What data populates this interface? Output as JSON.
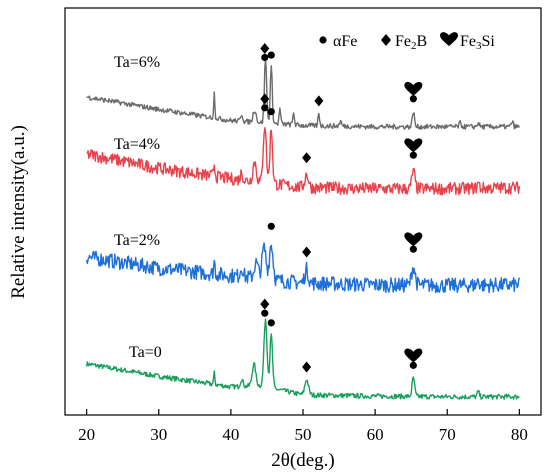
{
  "chart_data": {
    "type": "line",
    "xlabel": "2θ(deg.)",
    "ylabel": "Relative intensity(a.u.)",
    "xlim": [
      17,
      83
    ],
    "xticks": [
      20,
      30,
      40,
      50,
      60,
      70,
      80
    ],
    "y_ticks_shown": false,
    "grid": false,
    "legend": {
      "position": "top-right",
      "entries": [
        {
          "symbol": "circle",
          "label": "αFe"
        },
        {
          "symbol": "diamond",
          "label": "Fe2B"
        },
        {
          "symbol": "heart",
          "label": "Fe3Si"
        }
      ]
    },
    "peak_markers": {
      "circle": "αFe",
      "diamond": "Fe2B",
      "heart": "Fe3Si"
    },
    "series": [
      {
        "name": "Ta=6%",
        "color": "#1a9e5c",
        "offset": 3,
        "noise": 0.04,
        "baseline": [
          [
            20,
            0.55
          ],
          [
            30,
            0.35
          ],
          [
            40,
            0.18
          ],
          [
            44,
            0.2
          ],
          [
            50,
            0.05
          ],
          [
            60,
            0.03
          ],
          [
            70,
            0.02
          ],
          [
            80,
            0.02
          ]
        ],
        "peaks": [
          [
            37.7,
            0.18,
            0.12
          ],
          [
            41.5,
            0.12,
            0.25
          ],
          [
            43.2,
            0.35,
            0.35
          ],
          [
            44.8,
            1.1,
            0.3
          ],
          [
            45.6,
            0.85,
            0.25
          ],
          [
            50.5,
            0.25,
            0.35
          ],
          [
            65.3,
            0.3,
            0.25
          ],
          [
            74.3,
            0.08,
            0.2
          ]
        ],
        "markers": [
          {
            "x": 44.7,
            "symbols": [
              "diamond",
              "circle"
            ]
          },
          {
            "x": 45.6,
            "symbols": [
              "circle"
            ]
          },
          {
            "x": 50.5,
            "symbols": [
              "diamond"
            ]
          },
          {
            "x": 65.3,
            "symbols": [
              "heart",
              "circle"
            ]
          }
        ]
      },
      {
        "name": "Ta=4%",
        "color": "#1f6fd8",
        "offset": 2,
        "noise": 0.12,
        "baseline": [
          [
            20,
            0.5
          ],
          [
            30,
            0.32
          ],
          [
            40,
            0.2
          ],
          [
            50,
            0.08
          ],
          [
            60,
            0.05
          ],
          [
            70,
            0.04
          ],
          [
            80,
            0.05
          ]
        ],
        "peaks": [
          [
            37.7,
            0.2,
            0.15
          ],
          [
            41.5,
            0.15,
            0.3
          ],
          [
            43.5,
            0.25,
            0.4
          ],
          [
            44.6,
            0.5,
            0.4
          ],
          [
            45.6,
            0.58,
            0.35
          ],
          [
            50.5,
            0.22,
            0.35
          ],
          [
            65.3,
            0.3,
            0.35
          ],
          [
            74.3,
            0.08,
            0.2
          ]
        ],
        "markers": [
          {
            "x": 45.6,
            "symbols": [
              "circle"
            ]
          },
          {
            "x": 50.5,
            "symbols": [
              "diamond"
            ]
          },
          {
            "x": 65.3,
            "symbols": [
              "heart",
              "circle"
            ]
          }
        ]
      },
      {
        "name": "Ta=2%",
        "color": "#e8434d",
        "offset": 1,
        "noise": 0.1,
        "baseline": [
          [
            20,
            0.58
          ],
          [
            30,
            0.35
          ],
          [
            40,
            0.18
          ],
          [
            50,
            0.04
          ],
          [
            60,
            0.02
          ],
          [
            70,
            0.02
          ],
          [
            80,
            0.04
          ]
        ],
        "peaks": [
          [
            37.7,
            0.2,
            0.15
          ],
          [
            41.5,
            0.12,
            0.25
          ],
          [
            43.3,
            0.32,
            0.35
          ],
          [
            44.7,
            0.95,
            0.3
          ],
          [
            45.6,
            0.9,
            0.25
          ],
          [
            50.5,
            0.22,
            0.35
          ],
          [
            65.3,
            0.28,
            0.3
          ],
          [
            74.3,
            0.08,
            0.2
          ]
        ],
        "markers": [
          {
            "x": 44.7,
            "symbols": [
              "diamond",
              "circle"
            ]
          },
          {
            "x": 45.6,
            "symbols": [
              "circle"
            ]
          },
          {
            "x": 50.5,
            "symbols": [
              "diamond"
            ]
          },
          {
            "x": 65.3,
            "symbols": [
              "heart",
              "circle"
            ]
          }
        ]
      },
      {
        "name": "Ta=0",
        "color": "#6b6b6b",
        "offset": 0,
        "noise": 0.04,
        "baseline": [
          [
            20,
            0.5
          ],
          [
            30,
            0.3
          ],
          [
            40,
            0.12
          ],
          [
            50,
            0.04
          ],
          [
            60,
            0.02
          ],
          [
            70,
            0.02
          ],
          [
            80,
            0.02
          ]
        ],
        "peaks": [
          [
            37.7,
            0.4,
            0.12
          ],
          [
            41.5,
            0.12,
            0.2
          ],
          [
            43.3,
            0.2,
            0.3
          ],
          [
            44.8,
            1.05,
            0.22
          ],
          [
            45.6,
            0.9,
            0.2
          ],
          [
            46.8,
            0.25,
            0.15
          ],
          [
            48.7,
            0.2,
            0.15
          ],
          [
            52.2,
            0.2,
            0.15
          ],
          [
            55.2,
            0.08,
            0.2
          ],
          [
            65.3,
            0.25,
            0.2
          ],
          [
            71.8,
            0.06,
            0.2
          ],
          [
            74.3,
            0.06,
            0.2
          ],
          [
            79.0,
            0.08,
            0.2
          ]
        ],
        "markers": [
          {
            "x": 44.7,
            "symbols": [
              "diamond",
              "circle"
            ]
          },
          {
            "x": 45.6,
            "symbols": [
              "circle"
            ]
          },
          {
            "x": 52.2,
            "symbols": [
              "diamond"
            ]
          },
          {
            "x": 65.3,
            "symbols": [
              "heart",
              "circle"
            ]
          }
        ]
      }
    ]
  }
}
